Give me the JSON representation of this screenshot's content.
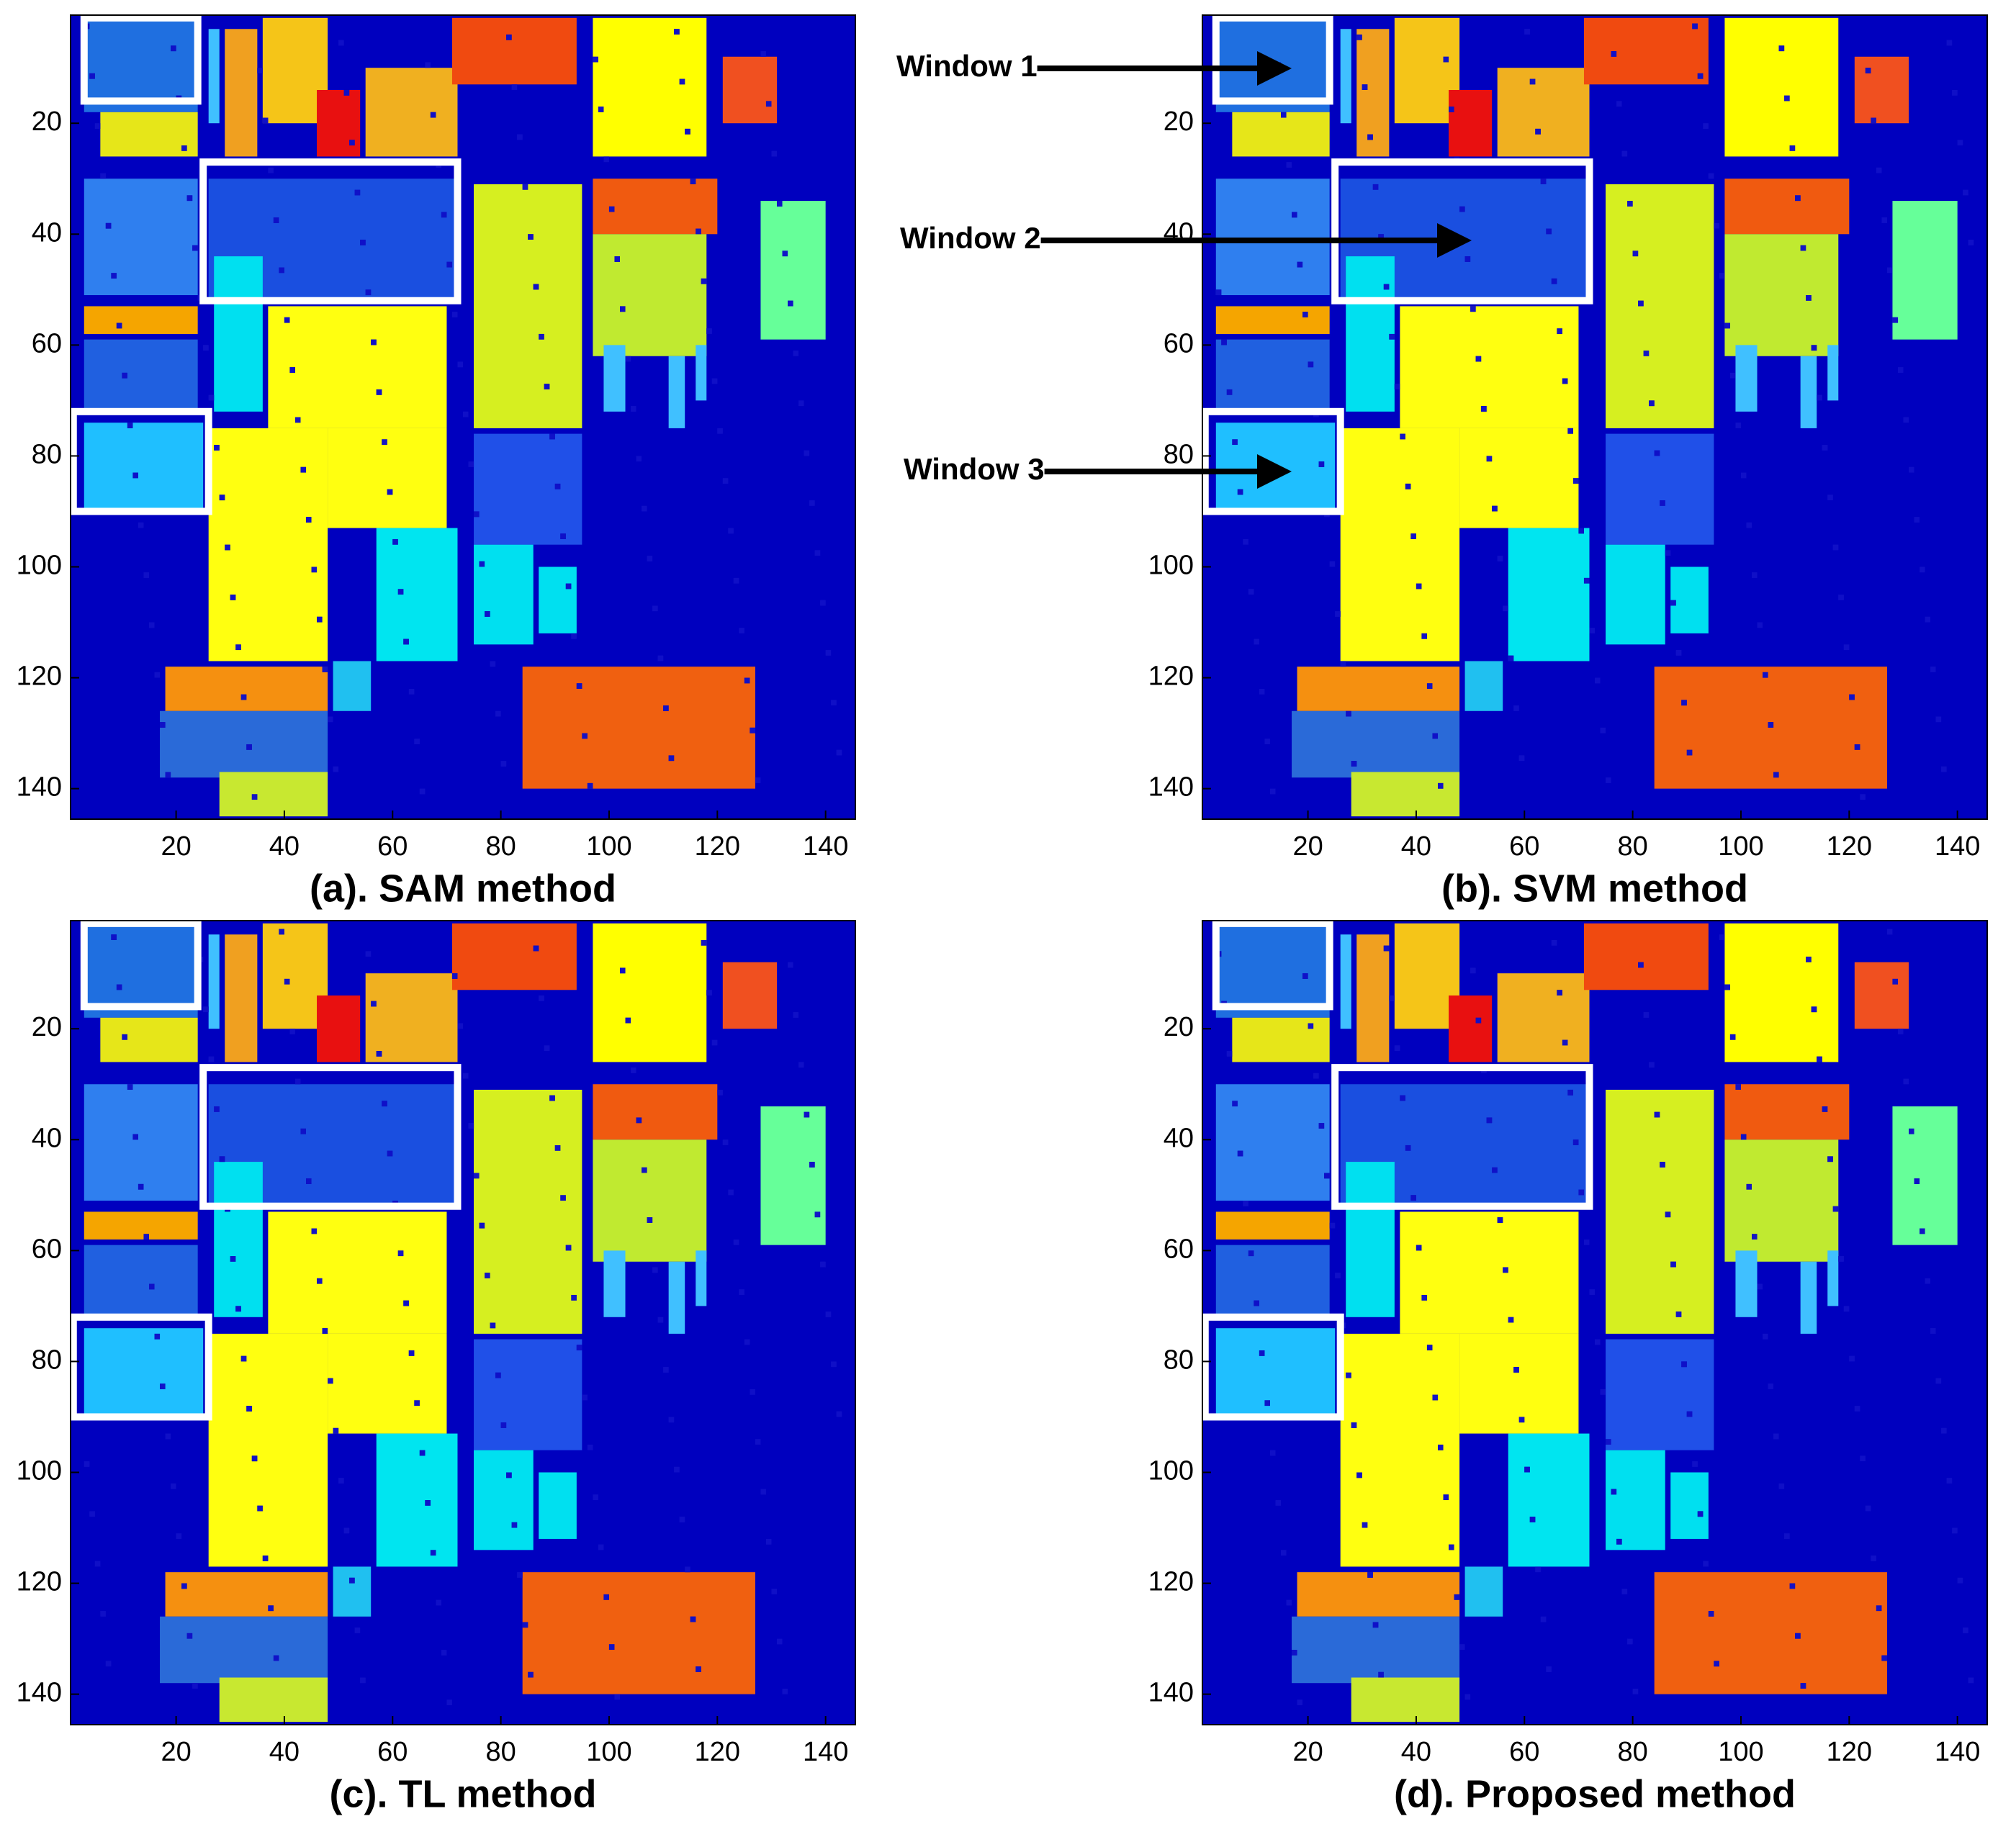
{
  "chart_data": [
    {
      "type": "image",
      "title": "(a). SAM method",
      "xlim": [
        0.5,
        145.5
      ],
      "ylim": [
        0.5,
        145.5
      ],
      "y_reversed": true,
      "xticks": [
        20,
        40,
        60,
        80,
        100,
        120,
        140
      ],
      "yticks": [
        20,
        40,
        60,
        80,
        100,
        120,
        140
      ]
    },
    {
      "type": "image",
      "title": "(b). SVM method",
      "xlim": [
        0.5,
        145.5
      ],
      "ylim": [
        0.5,
        145.5
      ],
      "y_reversed": true,
      "xticks": [
        20,
        40,
        60,
        80,
        100,
        120,
        140
      ],
      "yticks": [
        20,
        40,
        60,
        80,
        100,
        120,
        140
      ],
      "annotations": [
        "Window 1",
        "Window 2",
        "Window 3"
      ]
    },
    {
      "type": "image",
      "title": "(c). TL method",
      "xlim": [
        0.5,
        145.5
      ],
      "ylim": [
        0.5,
        145.5
      ],
      "y_reversed": true,
      "xticks": [
        20,
        40,
        60,
        80,
        100,
        120,
        140
      ],
      "yticks": [
        20,
        40,
        60,
        80,
        100,
        120,
        140
      ]
    },
    {
      "type": "image",
      "title": "(d). Proposed method",
      "xlim": [
        0.5,
        145.5
      ],
      "ylim": [
        0.5,
        145.5
      ],
      "y_reversed": true,
      "xticks": [
        20,
        40,
        60,
        80,
        100,
        120,
        140
      ],
      "yticks": [
        20,
        40,
        60,
        80,
        100,
        120,
        140
      ]
    }
  ]
}
